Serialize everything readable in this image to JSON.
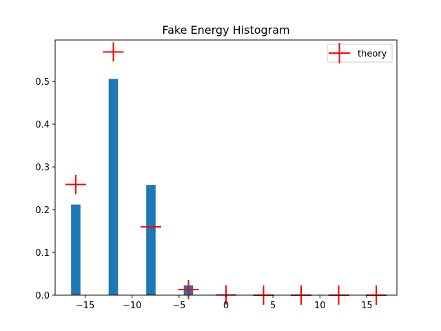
{
  "chart_data": {
    "type": "bar",
    "title": "Fake Energy Histogram",
    "xlabel": "",
    "ylabel": "",
    "xlim": [
      -18.2,
      18.2
    ],
    "ylim": [
      0,
      0.597
    ],
    "xticks": [
      -15,
      -10,
      -5,
      0,
      5,
      10,
      15
    ],
    "xtick_labels": [
      "−15",
      "−10",
      "−5",
      "0",
      "5",
      "10",
      "15"
    ],
    "yticks": [
      0.0,
      0.1,
      0.2,
      0.3,
      0.4,
      0.5
    ],
    "ytick_labels": [
      "0.0",
      "0.1",
      "0.2",
      "0.3",
      "0.4",
      "0.5"
    ],
    "bars": {
      "color": "#1f77b4",
      "width": 1.0,
      "x": [
        -16,
        -12,
        -8,
        -4,
        0,
        4,
        8,
        12,
        16
      ],
      "values": [
        0.212,
        0.506,
        0.258,
        0.023,
        0,
        0,
        0,
        0,
        0
      ]
    },
    "theory": {
      "name": "theory",
      "color": "#ff0000",
      "marker": "+",
      "x": [
        -16,
        -12,
        -8,
        -4,
        0,
        4,
        8,
        12,
        16
      ],
      "values": [
        0.259,
        0.569,
        0.16,
        0.013,
        0.0005,
        0.0,
        0.0,
        0.0,
        0.0
      ],
      "marker_sizes": [
        2.2,
        2.2,
        2.2,
        2.2,
        2.2,
        2.2,
        2.2,
        2.2,
        2.2
      ],
      "marker_heights": [
        0.045,
        0.045,
        0.0,
        0.045,
        0.045,
        0.045,
        0.045,
        0.045,
        0.045
      ]
    },
    "legend": {
      "placement": "top-right"
    },
    "grid": false
  }
}
